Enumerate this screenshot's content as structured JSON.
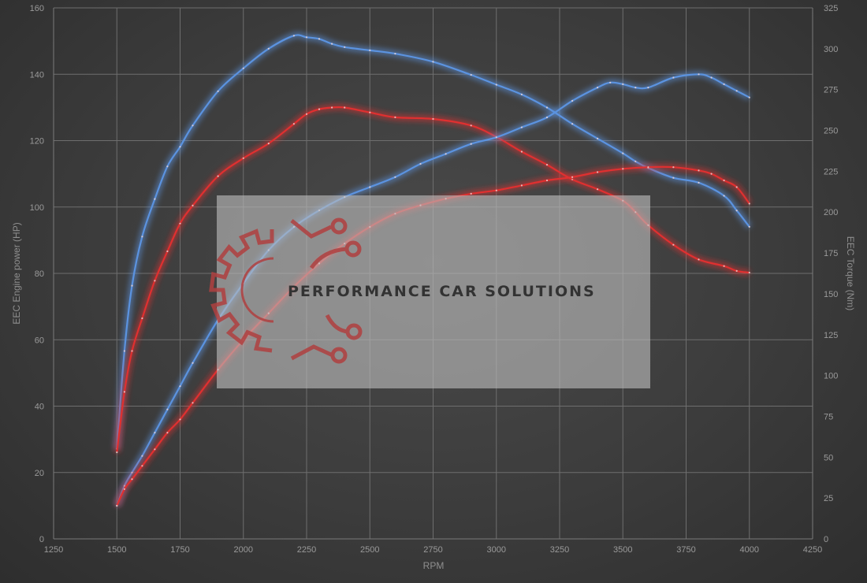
{
  "chart_data": {
    "type": "line",
    "xlabel": "RPM",
    "ylabel_left": "EEC Engine power (HP)",
    "ylabel_right": "EEC Torque (Nm)",
    "xlim": [
      1250,
      4250
    ],
    "ylim_left": [
      0,
      160
    ],
    "ylim_right": [
      0,
      325
    ],
    "x_ticks": [
      "1250",
      "1500",
      "1750",
      "2000",
      "2250",
      "2500",
      "2750",
      "3000",
      "3250",
      "3500",
      "3750",
      "4000",
      "4250"
    ],
    "y_left_ticks": [
      "0",
      "20",
      "40",
      "60",
      "80",
      "100",
      "120",
      "140",
      "160"
    ],
    "y_right_ticks": [
      "0",
      "25",
      "50",
      "75",
      "100",
      "125",
      "150",
      "175",
      "200",
      "225",
      "250",
      "275",
      "300",
      "325"
    ],
    "grid": true,
    "series": [
      {
        "axis": "right",
        "color": "#5b93e0",
        "x": [
          1500,
          1530,
          1560,
          1600,
          1650,
          1700,
          1750,
          1800,
          1900,
          2000,
          2100,
          2200,
          2250,
          2300,
          2350,
          2400,
          2500,
          2600,
          2750,
          2900,
          3000,
          3100,
          3200,
          3300,
          3400,
          3500,
          3550,
          3600,
          3700,
          3800,
          3900,
          3950,
          4000
        ],
        "y": [
          55,
          115,
          155,
          185,
          208,
          228,
          240,
          253,
          274,
          288,
          300,
          308,
          307,
          306,
          303,
          301,
          299,
          297,
          292,
          284,
          278,
          272,
          264,
          254,
          245,
          236,
          231,
          227,
          221,
          218,
          210,
          201,
          191
        ]
      },
      {
        "axis": "right",
        "color": "#e03030",
        "x": [
          1500,
          1530,
          1560,
          1600,
          1650,
          1700,
          1750,
          1800,
          1900,
          2000,
          2100,
          2200,
          2250,
          2300,
          2350,
          2400,
          2500,
          2600,
          2750,
          2900,
          3000,
          3100,
          3200,
          3300,
          3400,
          3500,
          3550,
          3600,
          3700,
          3800,
          3900,
          3950,
          4000
        ],
        "y": [
          53,
          90,
          115,
          135,
          158,
          176,
          193,
          204,
          222,
          233,
          242,
          254,
          260,
          263,
          264,
          264,
          261,
          258,
          257,
          253,
          246,
          237,
          229,
          220,
          214,
          207,
          200,
          192,
          180,
          171,
          167,
          164,
          163
        ]
      },
      {
        "axis": "left",
        "color": "#5b93e0",
        "x": [
          1500,
          1530,
          1560,
          1600,
          1650,
          1700,
          1750,
          1800,
          1900,
          2000,
          2100,
          2200,
          2300,
          2400,
          2500,
          2600,
          2700,
          2800,
          2900,
          3000,
          3100,
          3200,
          3300,
          3400,
          3450,
          3500,
          3550,
          3600,
          3700,
          3800,
          3850,
          3900,
          3950,
          4000
        ],
        "y": [
          10,
          16,
          20,
          25,
          32,
          39,
          46,
          53,
          66,
          77,
          87,
          94,
          99,
          103,
          106,
          109,
          113,
          116,
          119,
          121,
          124,
          127,
          132,
          136,
          137.5,
          137,
          136,
          136,
          139,
          140,
          139,
          137,
          135,
          133
        ]
      },
      {
        "axis": "left",
        "color": "#e03030",
        "x": [
          1500,
          1530,
          1560,
          1600,
          1650,
          1700,
          1750,
          1800,
          1900,
          2000,
          2100,
          2200,
          2300,
          2400,
          2500,
          2600,
          2700,
          2800,
          2900,
          3000,
          3100,
          3200,
          3300,
          3400,
          3500,
          3600,
          3700,
          3800,
          3850,
          3900,
          3950,
          4000
        ],
        "y": [
          10,
          15,
          18,
          22,
          27,
          32,
          36,
          41,
          51,
          60,
          68,
          76,
          83,
          89,
          94,
          98,
          100.5,
          102.5,
          104,
          105,
          106.5,
          108,
          109,
          110.5,
          111.5,
          112,
          112,
          111,
          110,
          108,
          106,
          101
        ]
      }
    ]
  },
  "watermark": {
    "text": "PERFORMANCE CAR SOLUTIONS",
    "logo_color": "#b04040"
  }
}
